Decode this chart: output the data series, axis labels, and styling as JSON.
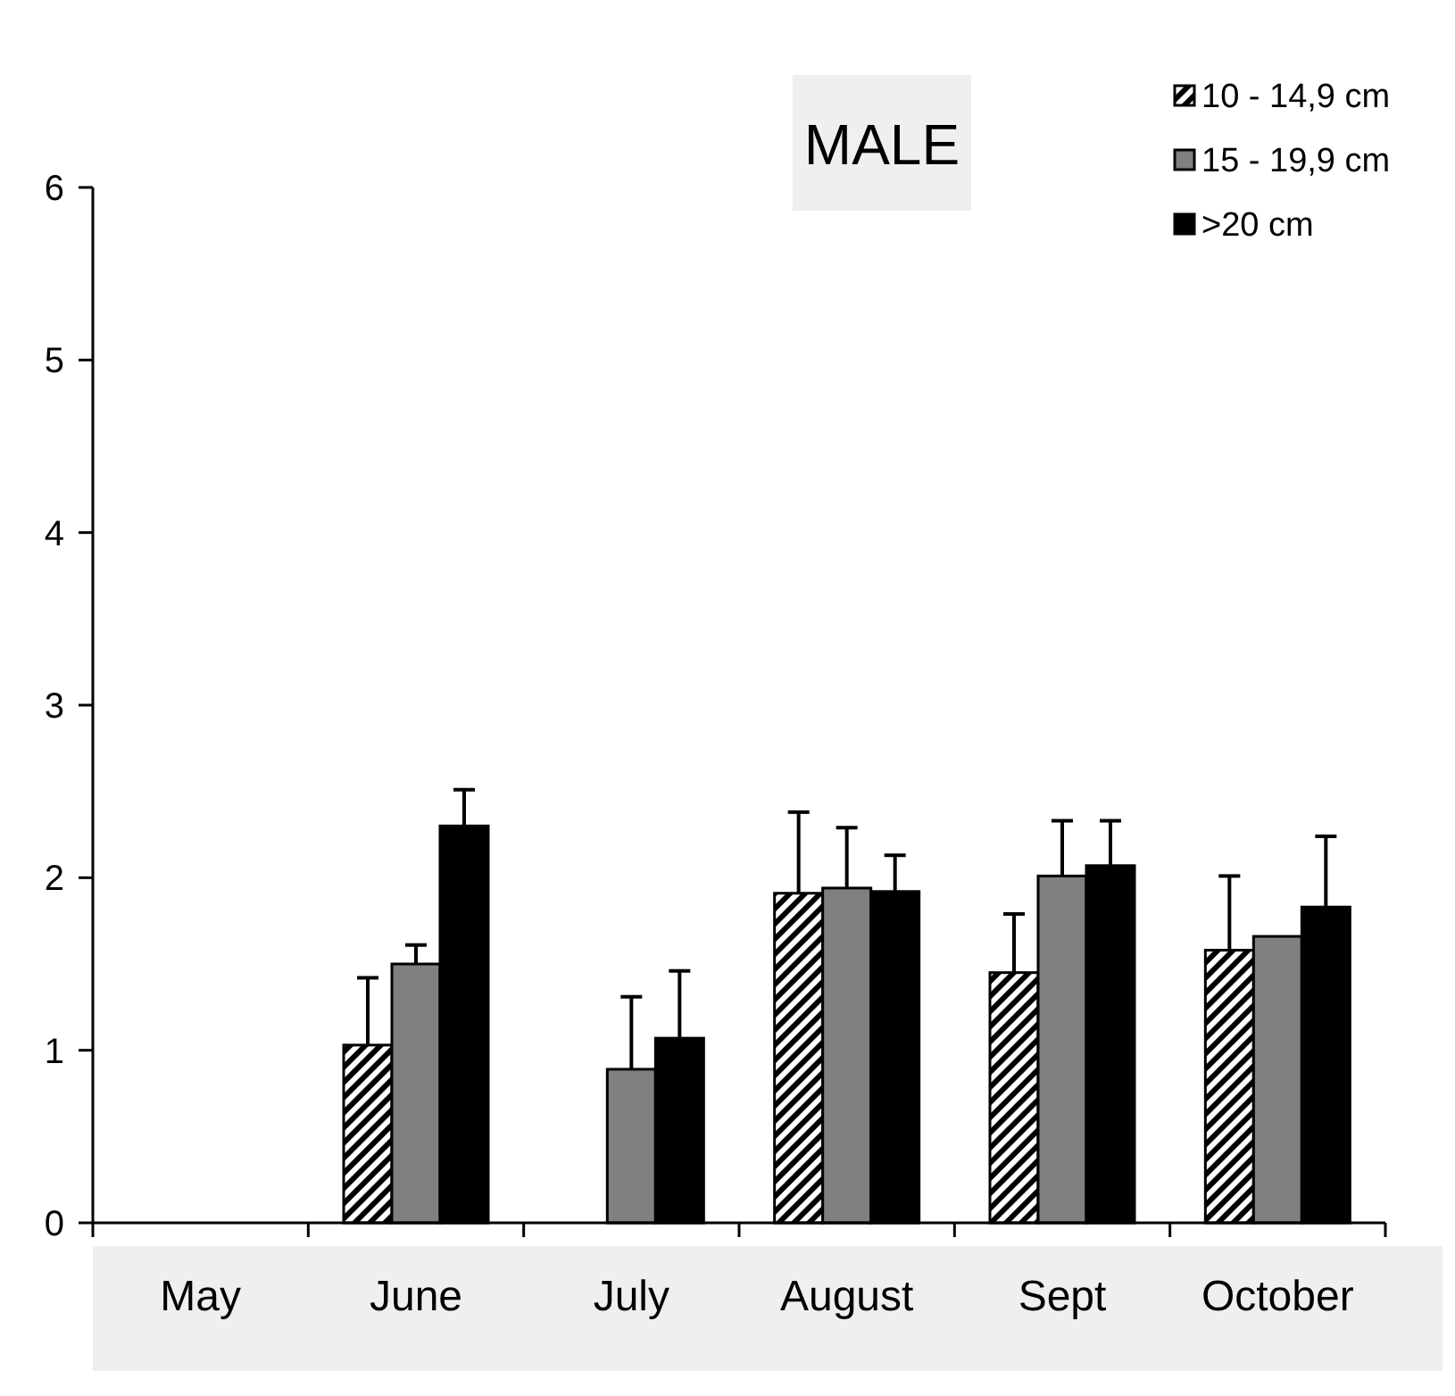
{
  "chart_data": {
    "type": "bar",
    "title": "MALE",
    "categories": [
      "May",
      "June",
      "July",
      "August",
      "Sept",
      "October"
    ],
    "series": [
      {
        "name": "10 - 14,9 cm",
        "color": "#000000",
        "values": [
          null,
          1.03,
          null,
          1.91,
          1.45,
          1.58
        ],
        "errors": [
          null,
          [
            1.03,
            1.42
          ],
          null,
          [
            1.91,
            2.38
          ],
          [
            1.45,
            1.79
          ],
          [
            1.58,
            2.01
          ]
        ]
      },
      {
        "name": "15 - 19,9 cm",
        "color": "#808080",
        "values": [
          null,
          1.5,
          0.89,
          1.94,
          2.01,
          1.66
        ],
        "errors": [
          null,
          [
            1.5,
            1.61
          ],
          [
            0.89,
            1.31
          ],
          [
            1.94,
            2.29
          ],
          [
            2.01,
            2.33
          ],
          null
        ]
      },
      {
        "name": ">20 cm",
        "color": "#000000",
        "values": [
          null,
          2.3,
          1.07,
          1.92,
          2.07,
          1.83
        ],
        "errors": [
          null,
          [
            2.3,
            2.51
          ],
          [
            1.07,
            1.46
          ],
          [
            1.92,
            2.13
          ],
          [
            2.07,
            2.33
          ],
          [
            1.83,
            2.24
          ]
        ]
      }
    ],
    "ylim": [
      0,
      6
    ],
    "yticks": [
      0,
      1,
      2,
      3,
      4,
      5,
      6
    ],
    "grid": false,
    "legend": "top right"
  }
}
